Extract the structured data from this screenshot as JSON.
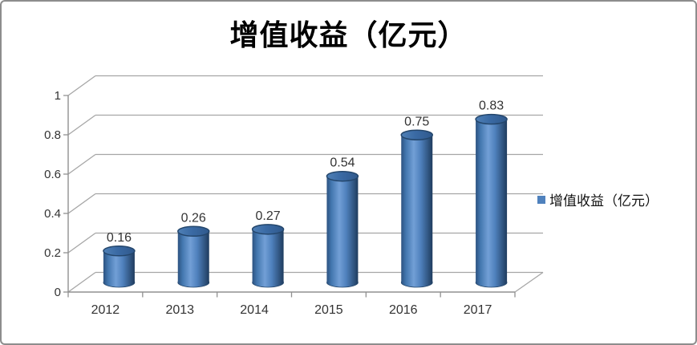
{
  "chart_data": {
    "type": "bar",
    "style": "3d-cylinder",
    "title": "增值收益（亿元）",
    "categories": [
      "2012",
      "2013",
      "2014",
      "2015",
      "2016",
      "2017"
    ],
    "values": [
      0.16,
      0.26,
      0.27,
      0.54,
      0.75,
      0.83
    ],
    "data_labels": [
      "0.16",
      "0.26",
      "0.27",
      "0.54",
      "0.75",
      "0.83"
    ],
    "xlabel": "",
    "ylabel": "",
    "ylim": [
      0,
      1
    ],
    "y_ticks": [
      "0",
      "0.2",
      "0.4",
      "0.6",
      "0.8",
      "1"
    ],
    "y_tick_values": [
      0,
      0.2,
      0.4,
      0.6,
      0.8,
      1
    ],
    "grid": true,
    "legend": {
      "position": "right",
      "label": "增值收益（亿元）",
      "marker_color": "#4f81bd"
    },
    "colors": {
      "bar_fill": "#4f81bd",
      "bar_edge": "#24466b",
      "bar_highlight": "#729fd6",
      "bar_shadow": "#1f3c5e",
      "gridline": "#a6a6a6",
      "axis": "#909090",
      "label_text": "#333333",
      "title_text": "#000000",
      "background": "#ffffff"
    }
  }
}
